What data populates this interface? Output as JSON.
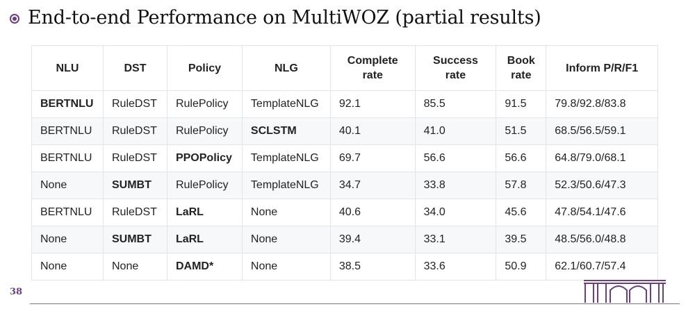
{
  "title": "End-to-end Performance on MultiWOZ (partial results)",
  "page_number": "38",
  "table": {
    "headers": [
      {
        "line1": "NLU",
        "line2": ""
      },
      {
        "line1": "DST",
        "line2": ""
      },
      {
        "line1": "Policy",
        "line2": ""
      },
      {
        "line1": "NLG",
        "line2": ""
      },
      {
        "line1": "Complete",
        "line2": "rate"
      },
      {
        "line1": "Success",
        "line2": "rate"
      },
      {
        "line1": "Book",
        "line2": "rate"
      },
      {
        "line1": "Inform P/R/F1",
        "line2": ""
      }
    ],
    "rows": [
      [
        "BERTNLU",
        "RuleDST",
        "RulePolicy",
        "TemplateNLG",
        "92.1",
        "85.5",
        "91.5",
        "79.8/92.8/83.8"
      ],
      [
        "BERTNLU",
        "RuleDST",
        "RulePolicy",
        "SCLSTM",
        "40.1",
        "41.0",
        "51.5",
        "68.5/56.5/59.1"
      ],
      [
        "BERTNLU",
        "RuleDST",
        "PPOPolicy",
        "TemplateNLG",
        "69.7",
        "56.6",
        "56.6",
        "64.8/79.0/68.1"
      ],
      [
        "None",
        "SUMBT",
        "RulePolicy",
        "TemplateNLG",
        "34.7",
        "33.8",
        "57.8",
        "52.3/50.6/47.3"
      ],
      [
        "BERTNLU",
        "RuleDST",
        "LaRL",
        "None",
        "40.6",
        "34.0",
        "45.6",
        "47.8/54.1/47.6"
      ],
      [
        "None",
        "SUMBT",
        "LaRL",
        "None",
        "39.4",
        "33.1",
        "39.5",
        "48.5/56.0/48.8"
      ],
      [
        "None",
        "None",
        "DAMD*",
        "None",
        "38.5",
        "33.6",
        "50.9",
        "62.1/60.7/57.4"
      ]
    ],
    "bold_cells": [
      [
        0,
        0
      ],
      [
        1,
        3
      ],
      [
        2,
        2
      ],
      [
        3,
        1
      ],
      [
        4,
        2
      ],
      [
        5,
        1
      ],
      [
        5,
        2
      ],
      [
        6,
        2
      ]
    ]
  },
  "colors": {
    "accent": "#6a3d86",
    "row_stripe": "#f6f8fa",
    "border": "#e1e4e8"
  },
  "icons": {
    "bullet": "circle-bullet-icon",
    "logo": "university-gate-logo"
  }
}
